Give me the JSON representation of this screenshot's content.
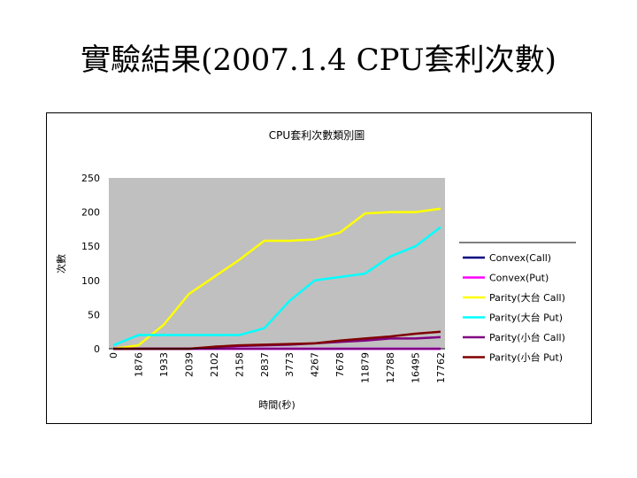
{
  "slide": {
    "title": "實驗結果(2007.1.4 CPU套利次數)"
  },
  "chart_data": {
    "type": "line",
    "title": "CPU套利次數類別圖",
    "xlabel": "時間(秒)",
    "ylabel": "次數",
    "ylim": [
      0,
      250
    ],
    "yticks": [
      0,
      50,
      100,
      150,
      200,
      250
    ],
    "categories": [
      "0",
      "1876",
      "1933",
      "2039",
      "2102",
      "2158",
      "2837",
      "3773",
      "4267",
      "7678",
      "11879",
      "12788",
      "16495",
      "17762"
    ],
    "legend_position": "right",
    "series": [
      {
        "name": "Convex(Call)",
        "color": "#000080",
        "values": [
          0,
          0,
          0,
          0,
          0,
          0,
          0,
          0,
          0,
          0,
          0,
          0,
          0,
          0
        ]
      },
      {
        "name": "Convex(Put)",
        "color": "#ff00ff",
        "values": [
          0,
          0,
          0,
          0,
          0,
          0,
          0,
          0,
          0,
          0,
          0,
          0,
          0,
          0
        ]
      },
      {
        "name": "Parity(大台 Call)",
        "color": "#ffff00",
        "values": [
          0,
          5,
          35,
          80,
          105,
          130,
          158,
          158,
          160,
          170,
          198,
          200,
          200,
          205
        ]
      },
      {
        "name": "Parity(大台 Put)",
        "color": "#00ffff",
        "values": [
          5,
          20,
          20,
          20,
          20,
          20,
          30,
          70,
          100,
          105,
          110,
          135,
          150,
          178
        ]
      },
      {
        "name": "Parity(小台 Call)",
        "color": "#800080",
        "values": [
          0,
          0,
          0,
          0,
          2,
          4,
          5,
          6,
          8,
          10,
          12,
          15,
          15,
          17
        ]
      },
      {
        "name": "Parity(小台 Put)",
        "color": "#800000",
        "values": [
          0,
          0,
          0,
          0,
          3,
          5,
          6,
          7,
          8,
          12,
          15,
          18,
          22,
          25
        ]
      }
    ]
  }
}
